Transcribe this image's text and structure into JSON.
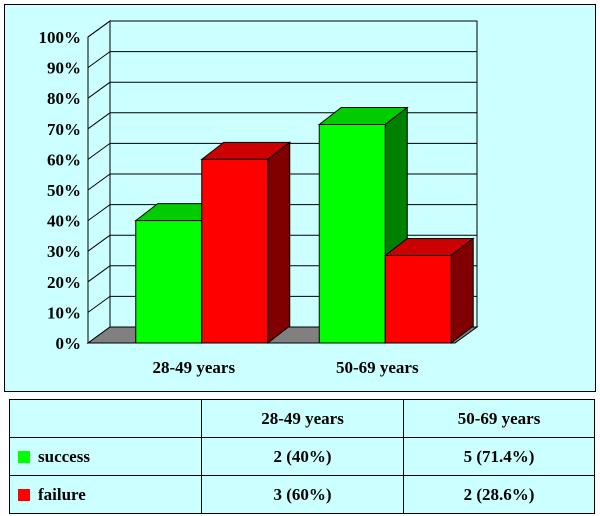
{
  "chart_data": {
    "type": "bar",
    "categories": [
      "28-49 years",
      "50-69 years"
    ],
    "series": [
      {
        "name": "success",
        "values": [
          40,
          71.4
        ],
        "color": "#00ff00",
        "side_color": "#008000",
        "top_color": "#00cc00"
      },
      {
        "name": "failure",
        "values": [
          60,
          28.6
        ],
        "color": "#ff0000",
        "side_color": "#800000",
        "top_color": "#cc0000"
      }
    ],
    "yticks": [
      "0%",
      "10%",
      "20%",
      "30%",
      "40%",
      "50%",
      "60%",
      "70%",
      "80%",
      "90%",
      "100%"
    ],
    "ylim": [
      0,
      100
    ],
    "grid": true,
    "three_d": true
  },
  "table": {
    "headers": [
      "28-49 years",
      "50-69 years"
    ],
    "rows": [
      {
        "label": "success",
        "color": "#00ff00",
        "cells": [
          "2 (40%)",
          "5 (71.4%)"
        ]
      },
      {
        "label": "failure",
        "color": "#ff0000",
        "cells": [
          "3 (60%)",
          "2 (28.6%)"
        ]
      }
    ]
  }
}
